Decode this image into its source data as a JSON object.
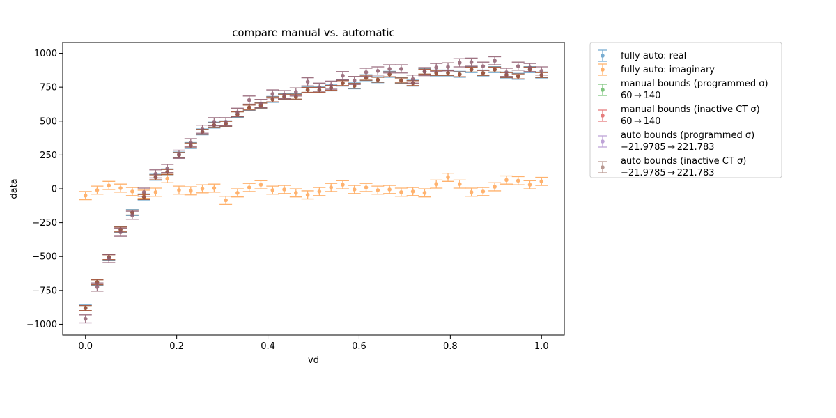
{
  "chart_data": {
    "type": "scatter",
    "title": "compare manual vs. automatic",
    "xlabel": "vd",
    "ylabel": "data",
    "xlim": [
      -0.05,
      1.05
    ],
    "ylim": [
      -1080,
      1080
    ],
    "xticks": [
      0.0,
      0.2,
      0.4,
      0.6,
      0.8,
      1.0
    ],
    "xtick_labels": [
      "0.0",
      "0.2",
      "0.4",
      "0.6",
      "0.8",
      "1.0"
    ],
    "yticks": [
      -1000,
      -750,
      -500,
      -250,
      0,
      250,
      500,
      750,
      1000
    ],
    "ytick_labels": [
      "−1000",
      "−750",
      "−500",
      "−250",
      "0",
      "250",
      "500",
      "750",
      "1000"
    ],
    "grid": false,
    "legend_placement": "outside-right",
    "x": [
      0.0,
      0.0256,
      0.0513,
      0.0769,
      0.1026,
      0.1282,
      0.1538,
      0.1795,
      0.2051,
      0.2308,
      0.2564,
      0.2821,
      0.3077,
      0.3333,
      0.359,
      0.3846,
      0.4103,
      0.4359,
      0.4615,
      0.4872,
      0.5128,
      0.5385,
      0.5641,
      0.5897,
      0.6154,
      0.641,
      0.6667,
      0.6923,
      0.7179,
      0.7436,
      0.7692,
      0.7949,
      0.8205,
      0.8462,
      0.8718,
      0.8974,
      0.9231,
      0.9487,
      0.9744,
      1.0
    ],
    "series": [
      {
        "name": "fully auto: real",
        "color": "#1f77b4",
        "y": [
          -880,
          -690,
          -505,
          -300,
          -175,
          -60,
          85,
          125,
          250,
          320,
          420,
          470,
          480,
          550,
          600,
          615,
          660,
          680,
          680,
          730,
          730,
          745,
          780,
          760,
          820,
          805,
          845,
          800,
          780,
          865,
          855,
          855,
          845,
          880,
          855,
          880,
          840,
          830,
          880,
          840
        ],
        "err": [
          22,
          22,
          22,
          22,
          22,
          22,
          22,
          22,
          22,
          22,
          22,
          22,
          22,
          22,
          22,
          22,
          22,
          22,
          22,
          22,
          22,
          22,
          22,
          22,
          22,
          22,
          22,
          22,
          22,
          22,
          22,
          22,
          22,
          22,
          22,
          22,
          22,
          22,
          22,
          22
        ]
      },
      {
        "name": "fully auto: imaginary",
        "color": "#ff7f0e",
        "y": [
          -50,
          -10,
          25,
          5,
          -20,
          -40,
          -25,
          75,
          -10,
          -15,
          0,
          5,
          -85,
          -30,
          10,
          30,
          -10,
          -5,
          -30,
          -45,
          -20,
          10,
          30,
          -5,
          10,
          -10,
          -5,
          -25,
          -20,
          -30,
          35,
          85,
          35,
          -25,
          -20,
          15,
          65,
          60,
          30,
          55
        ],
        "err": [
          30,
          30,
          30,
          30,
          30,
          30,
          30,
          30,
          30,
          30,
          30,
          30,
          30,
          30,
          30,
          30,
          30,
          30,
          30,
          30,
          30,
          30,
          30,
          30,
          30,
          30,
          30,
          30,
          30,
          30,
          30,
          30,
          30,
          30,
          30,
          30,
          30,
          30,
          30,
          30
        ]
      },
      {
        "name": "manual bounds (programmed σ)",
        "name_line2": "60 → 140",
        "color": "#2ca02c",
        "y": [
          -880,
          -690,
          -505,
          -300,
          -175,
          -60,
          85,
          125,
          250,
          320,
          420,
          470,
          480,
          550,
          600,
          615,
          660,
          680,
          680,
          730,
          730,
          745,
          780,
          760,
          820,
          805,
          845,
          800,
          780,
          865,
          855,
          855,
          845,
          880,
          855,
          880,
          840,
          830,
          880,
          840
        ],
        "err": [
          18,
          18,
          18,
          18,
          18,
          18,
          18,
          18,
          18,
          18,
          18,
          18,
          18,
          18,
          18,
          18,
          18,
          18,
          18,
          18,
          18,
          18,
          18,
          18,
          18,
          18,
          18,
          18,
          18,
          18,
          18,
          18,
          18,
          18,
          18,
          18,
          18,
          18,
          18,
          18
        ]
      },
      {
        "name": "manual bounds (inactive CT σ)",
        "name_line2": "60 → 140",
        "color": "#d62728",
        "y": [
          -880,
          -690,
          -505,
          -300,
          -175,
          -60,
          85,
          125,
          250,
          320,
          420,
          470,
          480,
          550,
          600,
          615,
          660,
          680,
          680,
          730,
          730,
          745,
          780,
          760,
          820,
          805,
          845,
          800,
          780,
          865,
          855,
          855,
          845,
          880,
          855,
          880,
          840,
          830,
          880,
          840
        ],
        "err": [
          18,
          18,
          18,
          18,
          18,
          18,
          18,
          18,
          18,
          18,
          18,
          18,
          18,
          18,
          18,
          18,
          18,
          18,
          18,
          18,
          18,
          18,
          18,
          18,
          18,
          18,
          18,
          18,
          18,
          18,
          18,
          18,
          18,
          18,
          18,
          18,
          18,
          18,
          18,
          18
        ]
      },
      {
        "name": "auto bounds (programmed σ)",
        "name_line2": "−21.9785 → 221.783",
        "color": "#9467bd",
        "y": [
          -960,
          -725,
          -515,
          -320,
          -195,
          -25,
          110,
          150,
          255,
          340,
          440,
          495,
          495,
          565,
          655,
          630,
          700,
          695,
          715,
          790,
          750,
          765,
          835,
          800,
          860,
          870,
          885,
          885,
          810,
          865,
          895,
          900,
          930,
          935,
          905,
          945,
          860,
          905,
          895,
          870
        ],
        "err": [
          30,
          30,
          30,
          30,
          30,
          30,
          30,
          30,
          30,
          30,
          30,
          30,
          30,
          30,
          30,
          30,
          30,
          30,
          30,
          30,
          30,
          30,
          30,
          30,
          30,
          30,
          30,
          30,
          30,
          30,
          30,
          30,
          30,
          30,
          30,
          30,
          30,
          30,
          30,
          30
        ]
      },
      {
        "name": "auto bounds (inactive CT σ)",
        "name_line2": "−21.9785 → 221.783",
        "color": "#8c564b",
        "y": [
          -960,
          -725,
          -515,
          -320,
          -195,
          -25,
          110,
          150,
          255,
          340,
          440,
          495,
          495,
          565,
          655,
          630,
          700,
          695,
          715,
          790,
          750,
          765,
          835,
          800,
          860,
          870,
          885,
          885,
          810,
          865,
          895,
          900,
          930,
          935,
          905,
          945,
          860,
          905,
          895,
          870
        ],
        "err": [
          30,
          30,
          30,
          30,
          30,
          30,
          30,
          30,
          30,
          30,
          30,
          30,
          30,
          30,
          30,
          30,
          30,
          30,
          30,
          30,
          30,
          30,
          30,
          30,
          30,
          30,
          30,
          30,
          30,
          30,
          30,
          30,
          30,
          30,
          30,
          30,
          30,
          30,
          30,
          30
        ]
      }
    ]
  }
}
